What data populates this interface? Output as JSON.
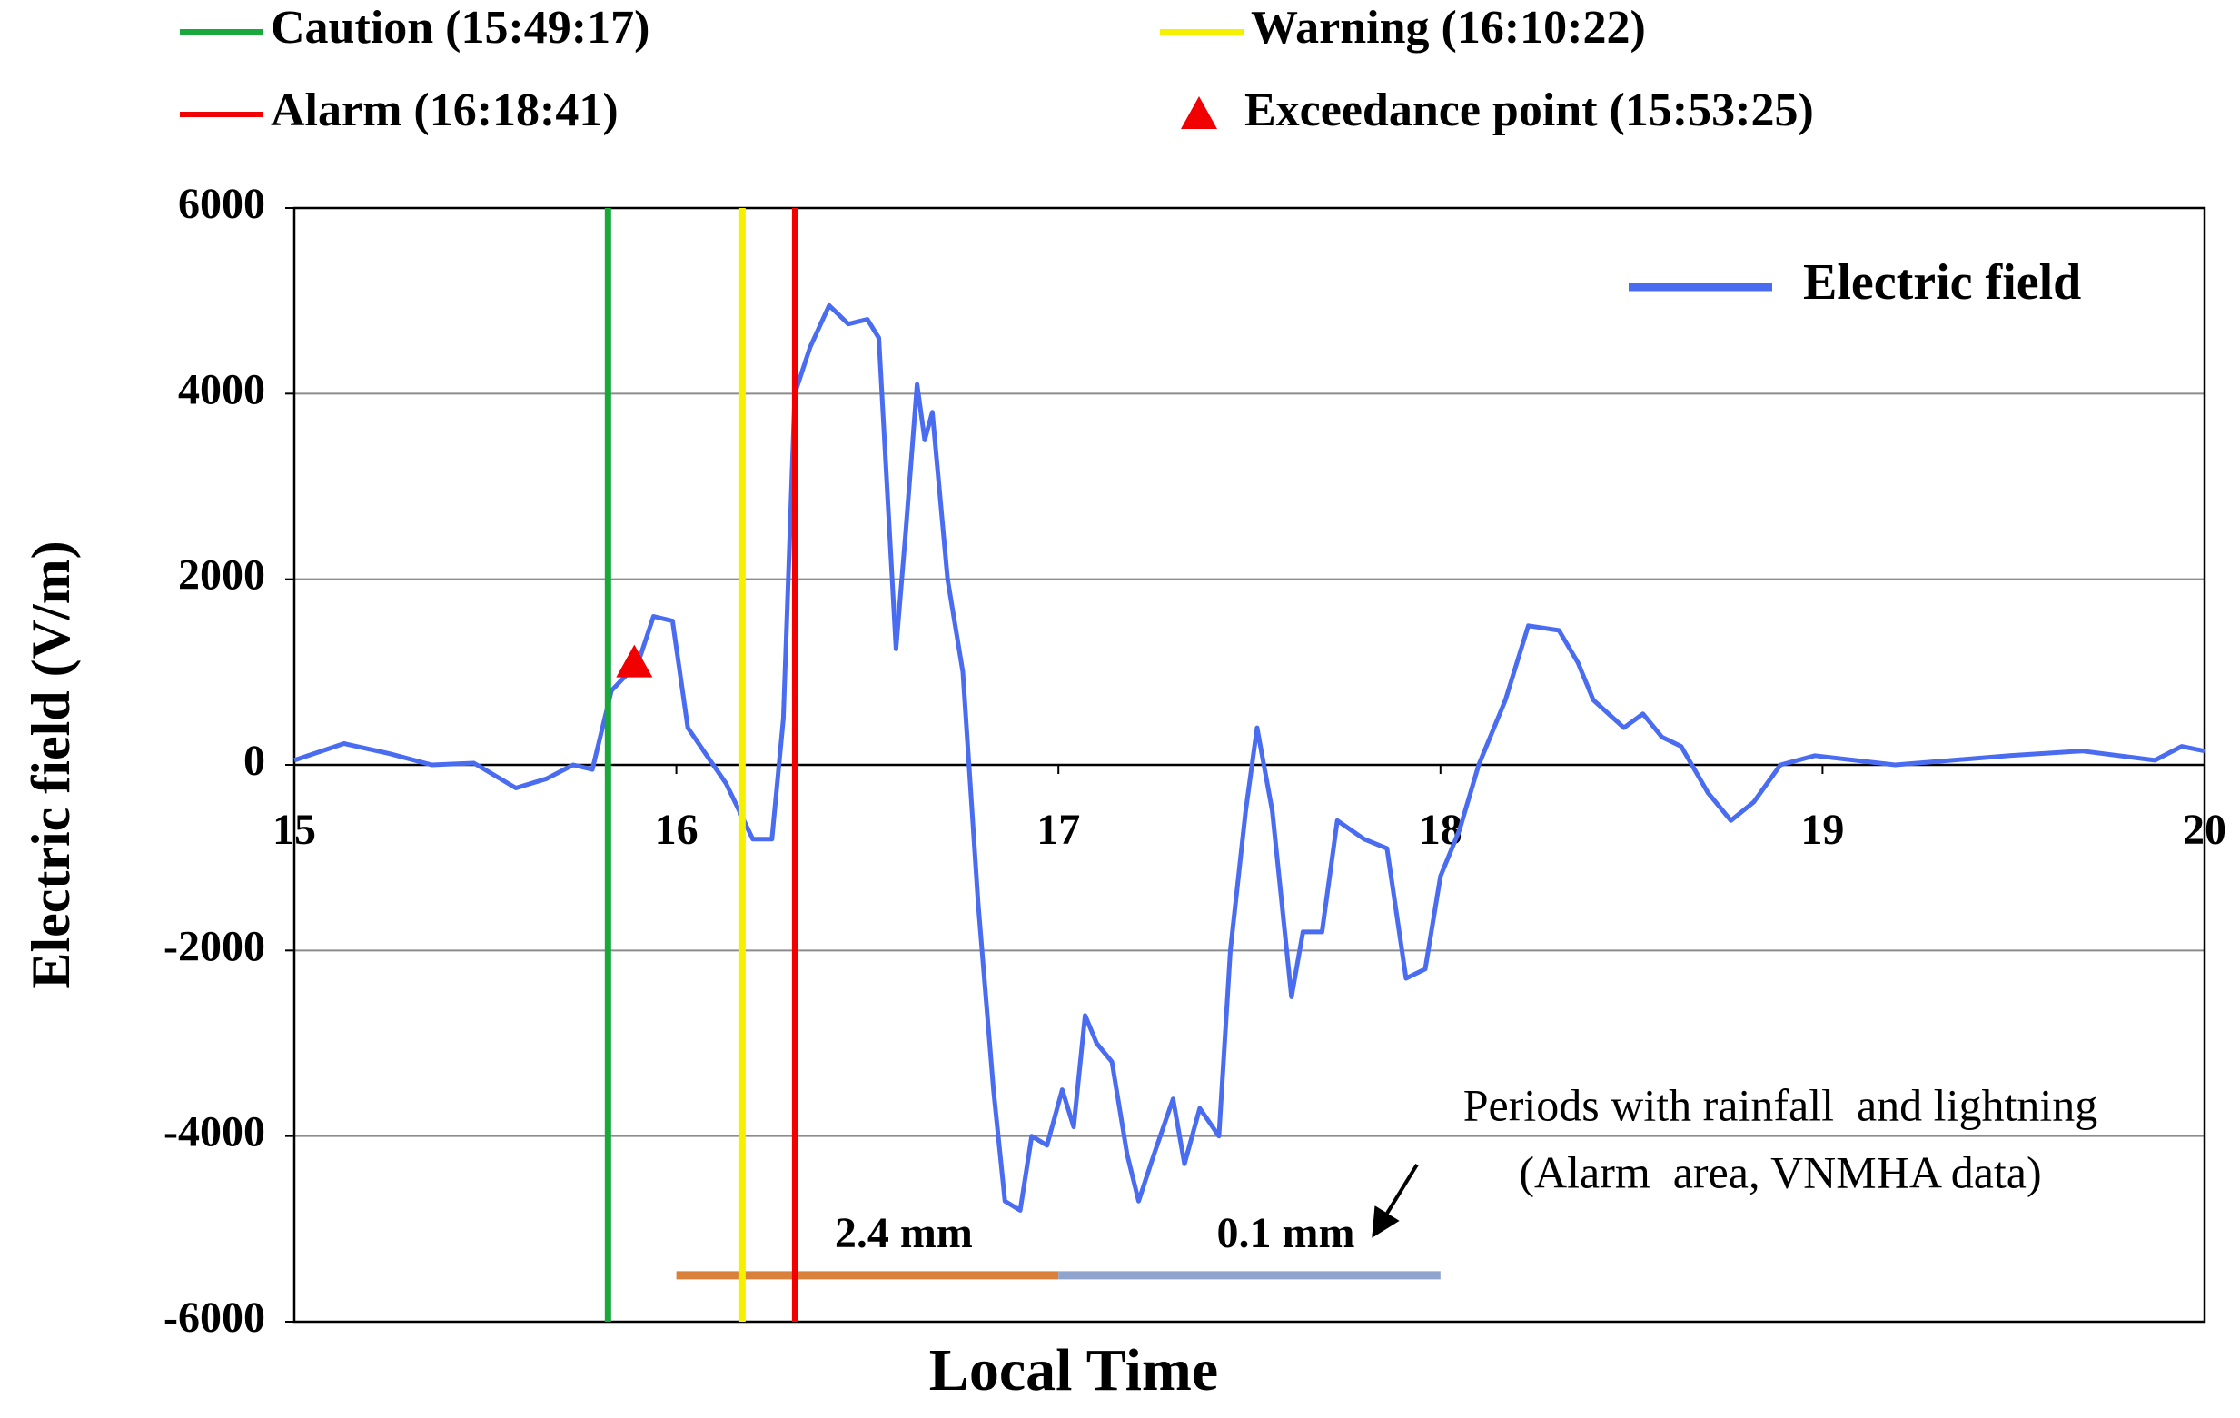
{
  "chart_data": {
    "type": "line",
    "x_label": "Local Time",
    "y_label": "Electric field (V/m)",
    "xlim": [
      15,
      20
    ],
    "ylim": [
      -6000,
      6000
    ],
    "xticks": [
      15,
      16,
      17,
      18,
      19,
      20
    ],
    "yticks": [
      -6000,
      -4000,
      -2000,
      0,
      2000,
      4000,
      6000
    ],
    "grid": true,
    "legend": "upper right",
    "x": [
      15.0,
      15.13,
      15.25,
      15.36,
      15.47,
      15.58,
      15.66,
      15.73,
      15.78,
      15.83,
      15.9,
      15.94,
      15.99,
      16.03,
      16.08,
      16.13,
      16.2,
      16.25,
      16.28,
      16.31,
      16.35,
      16.4,
      16.45,
      16.5,
      16.53,
      16.575,
      16.6,
      16.63,
      16.65,
      16.67,
      16.71,
      16.75,
      16.79,
      16.83,
      16.86,
      16.9,
      16.93,
      16.97,
      17.01,
      17.04,
      17.07,
      17.1,
      17.14,
      17.18,
      17.21,
      17.25,
      17.3,
      17.33,
      17.37,
      17.42,
      17.45,
      17.49,
      17.52,
      17.56,
      17.61,
      17.64,
      17.69,
      17.73,
      17.8,
      17.86,
      17.91,
      17.96,
      18.0,
      18.05,
      18.1,
      18.17,
      18.23,
      18.31,
      18.36,
      18.4,
      18.48,
      18.53,
      18.58,
      18.63,
      18.7,
      18.76,
      18.82,
      18.89,
      18.98,
      19.19,
      19.49,
      19.68,
      19.87,
      19.94,
      20.0
    ],
    "series": [
      {
        "name": "Electric field",
        "color": "#4a6cf0",
        "values": [
          50,
          230,
          120,
          0,
          20,
          -250,
          -150,
          0,
          -50,
          800,
          1100,
          1600,
          1550,
          400,
          100,
          -200,
          -800,
          -800,
          500,
          4000,
          4500,
          4950,
          4750,
          4800,
          4600,
          1250,
          2500,
          4100,
          3500,
          3800,
          2000,
          1000,
          -1500,
          -3500,
          -4700,
          -4800,
          -4000,
          -4100,
          -3500,
          -3900,
          -2700,
          -3000,
          -3200,
          -4200,
          -4700,
          -4200,
          -3600,
          -4300,
          -3700,
          -4000,
          -2000,
          -500,
          400,
          -500,
          -2500,
          -1800,
          -1800,
          -600,
          -800,
          -900,
          -2300,
          -2200,
          -1200,
          -700,
          0,
          700,
          1500,
          1450,
          1100,
          700,
          400,
          550,
          300,
          200,
          -300,
          -600,
          -400,
          0,
          100,
          0,
          100,
          150,
          50,
          200,
          150
        ]
      }
    ],
    "events": [
      {
        "name": "Caution (15:49:17)",
        "x": 15.821,
        "color": "#19a83c"
      },
      {
        "name": "Warning (16:10:22)",
        "x": 16.173,
        "color": "#f5f000"
      },
      {
        "name": "Alarm (16:18:41)",
        "x": 16.311,
        "color": "#f00000"
      }
    ],
    "exceedance": {
      "name": "Exceedance point (15:53:25)",
      "x": 15.89,
      "y": 1100,
      "color": "#f00000"
    },
    "rain_periods": [
      {
        "label": "2.4 mm",
        "x": [
          16,
          17
        ],
        "y": -5500,
        "color": "#d9803a"
      },
      {
        "label": "0.1 mm",
        "x": [
          17,
          18
        ],
        "y": -5500,
        "color": "#8fa4cc"
      }
    ],
    "annotation": [
      "Periods with rainfall  and lightning",
      "(Alarm  area, VNMHA data)"
    ]
  }
}
